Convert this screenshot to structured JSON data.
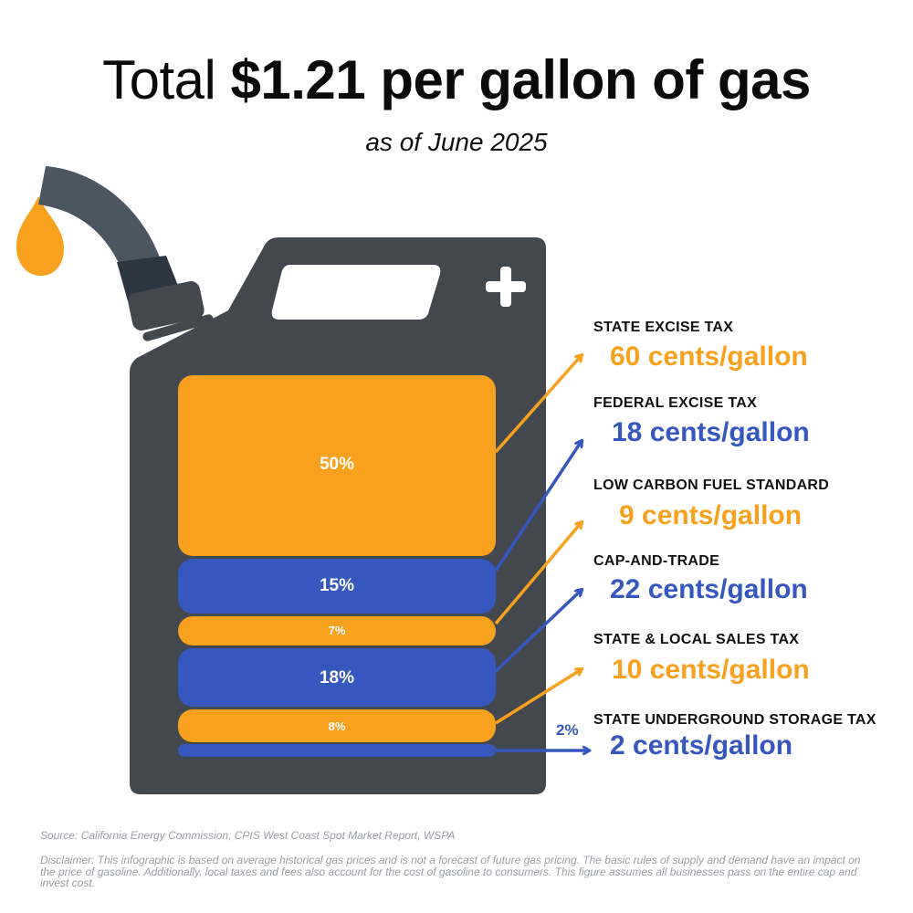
{
  "title": {
    "prefix": "Total",
    "emphasis": "$1.21 per gallon of gas",
    "subtitle": "as of June 2025"
  },
  "colors": {
    "orange": "#F7A11E",
    "blue": "#3657BE",
    "can": "#43484F",
    "nozzle": "#4A5763"
  },
  "segments": [
    {
      "label": "50%",
      "color": "orange",
      "share": 50
    },
    {
      "label": "15%",
      "color": "blue",
      "share": 15
    },
    {
      "label": "7%",
      "color": "orange",
      "share": 7
    },
    {
      "label": "18%",
      "color": "blue",
      "share": 18
    },
    {
      "label": "8%",
      "color": "orange",
      "share": 8
    },
    {
      "label": "2%",
      "color": "blue",
      "share": 2
    }
  ],
  "taxes": [
    {
      "name": "STATE EXCISE TAX",
      "amount": "60 cents/gallon",
      "color": "orange"
    },
    {
      "name": "FEDERAL EXCISE TAX",
      "amount": "18 cents/gallon",
      "color": "blue"
    },
    {
      "name": "LOW CARBON FUEL STANDARD",
      "amount": "9 cents/gallon",
      "color": "orange"
    },
    {
      "name": "CAP-AND-TRADE",
      "amount": "22 cents/gallon",
      "color": "blue"
    },
    {
      "name": "STATE & LOCAL SALES TAX",
      "amount": "10 cents/gallon",
      "color": "orange"
    },
    {
      "name": "STATE UNDERGROUND STORAGE TAX",
      "amount": "2 cents/gallon",
      "color": "blue"
    }
  ],
  "icons": [
    "gas-can-icon",
    "fuel-nozzle-icon",
    "fuel-drop-icon",
    "plus-icon"
  ],
  "footer": {
    "source": "Source: California Energy Commission, CPIS West Coast Spot Market Report, WSPA",
    "disclaimer": "Disclaimer: This infographic is based on average historical gas prices and is not a forecast of future gas pricing. The basic rules of supply and demand have an impact on the price of gasoline. Additionally, local taxes and fees also account for the cost of gasoline to consumers. This figure assumes all businesses pass on the entire cap and invest cost."
  }
}
